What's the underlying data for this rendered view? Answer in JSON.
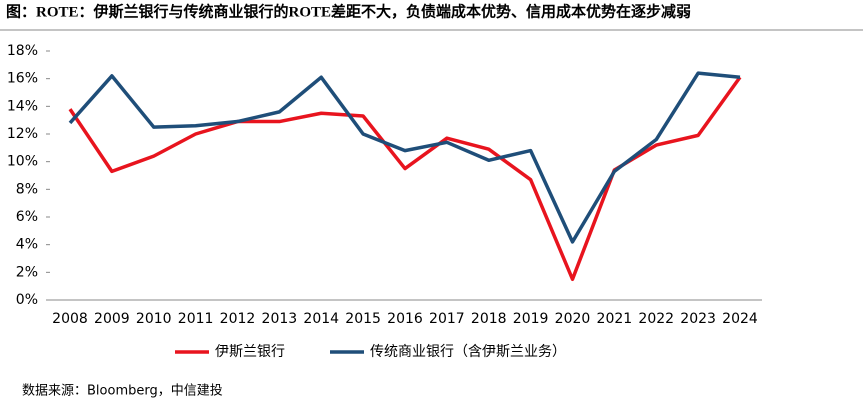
{
  "chart_data": {
    "type": "line",
    "title": "图：ROTE：伊斯兰银行与传统商业银行的ROTE差距不大，负债端成本优势、信用成本优势在逐步减弱",
    "source": "数据来源：Bloomberg，中信建投",
    "categories": [
      "2008",
      "2009",
      "2010",
      "2011",
      "2012",
      "2013",
      "2014",
      "2015",
      "2016",
      "2017",
      "2018",
      "2019",
      "2020",
      "2021",
      "2022",
      "2023",
      "2024"
    ],
    "series": [
      {
        "name": "伊斯兰银行",
        "color": "#e8141e",
        "values": [
          13.8,
          9.3,
          10.4,
          12.0,
          12.9,
          12.9,
          13.5,
          13.3,
          9.5,
          11.7,
          10.9,
          8.7,
          1.5,
          9.4,
          11.2,
          11.9,
          16.1
        ]
      },
      {
        "name": "传统商业银行（含伊斯兰业务）",
        "color": "#1f4e79",
        "values": [
          12.8,
          16.2,
          12.5,
          12.6,
          12.9,
          13.6,
          16.1,
          12.0,
          10.8,
          11.4,
          10.1,
          10.8,
          4.2,
          9.3,
          11.6,
          16.4,
          16.1
        ]
      }
    ],
    "ylim": [
      0,
      18
    ],
    "yticks": [
      {
        "value": 0,
        "label": "0%"
      },
      {
        "value": 2,
        "label": "2%"
      },
      {
        "value": 4,
        "label": "4%"
      },
      {
        "value": 6,
        "label": "6%"
      },
      {
        "value": 8,
        "label": "8%"
      },
      {
        "value": 10,
        "label": "10%"
      },
      {
        "value": 12,
        "label": "12%"
      },
      {
        "value": 14,
        "label": "14%"
      },
      {
        "value": 16,
        "label": "16%"
      },
      {
        "value": 18,
        "label": "18%"
      }
    ],
    "grid": false
  }
}
